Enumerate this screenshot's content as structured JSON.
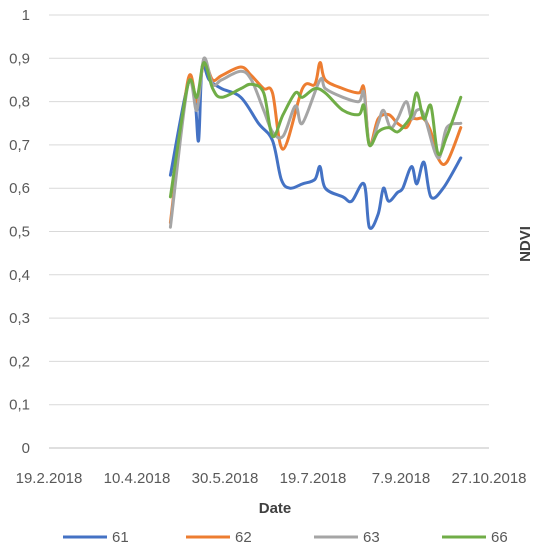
{
  "chart_data": {
    "type": "line",
    "title": "",
    "xlabel": "Date",
    "ylabel": "NDVI",
    "x_ticks": [
      "19.2.2018",
      "10.4.2018",
      "30.5.2018",
      "19.7.2018",
      "7.9.2018",
      "27.10.2018"
    ],
    "y_ticks": [
      "0",
      "0,1",
      "0,2",
      "0,3",
      "0,4",
      "0,5",
      "0,6",
      "0,7",
      "0,8",
      "0,9",
      "1"
    ],
    "xlim": [
      "2018-02-19",
      "2018-10-27"
    ],
    "ylim": [
      0,
      1
    ],
    "grid": "horizontal",
    "legend_position": "bottom",
    "series": [
      {
        "name": "61",
        "color": "#4472C4",
        "points": [
          [
            "2018-04-29",
            0.63
          ],
          [
            "2018-05-09",
            0.84
          ],
          [
            "2018-05-13",
            0.8
          ],
          [
            "2018-05-15",
            0.71
          ],
          [
            "2018-05-17",
            0.88
          ],
          [
            "2018-05-21",
            0.85
          ],
          [
            "2018-05-28",
            0.83
          ],
          [
            "2018-06-08",
            0.81
          ],
          [
            "2018-06-18",
            0.75
          ],
          [
            "2018-06-26",
            0.71
          ],
          [
            "2018-07-01",
            0.62
          ],
          [
            "2018-07-06",
            0.6
          ],
          [
            "2018-07-13",
            0.61
          ],
          [
            "2018-07-20",
            0.62
          ],
          [
            "2018-07-23",
            0.65
          ],
          [
            "2018-07-26",
            0.6
          ],
          [
            "2018-08-05",
            0.58
          ],
          [
            "2018-08-10",
            0.57
          ],
          [
            "2018-08-17",
            0.61
          ],
          [
            "2018-08-20",
            0.51
          ],
          [
            "2018-08-25",
            0.54
          ],
          [
            "2018-08-28",
            0.6
          ],
          [
            "2018-08-31",
            0.57
          ],
          [
            "2018-09-05",
            0.59
          ],
          [
            "2018-09-08",
            0.6
          ],
          [
            "2018-09-13",
            0.65
          ],
          [
            "2018-09-16",
            0.61
          ],
          [
            "2018-09-20",
            0.66
          ],
          [
            "2018-09-24",
            0.58
          ],
          [
            "2018-10-01",
            0.6
          ],
          [
            "2018-10-11",
            0.67
          ]
        ]
      },
      {
        "name": "62",
        "color": "#ED7D31",
        "points": [
          [
            "2018-04-29",
            0.52
          ],
          [
            "2018-05-09",
            0.85
          ],
          [
            "2018-05-14",
            0.8
          ],
          [
            "2018-05-18",
            0.89
          ],
          [
            "2018-05-23",
            0.85
          ],
          [
            "2018-05-28",
            0.86
          ],
          [
            "2018-06-08",
            0.88
          ],
          [
            "2018-06-14",
            0.86
          ],
          [
            "2018-06-21",
            0.83
          ],
          [
            "2018-06-26",
            0.82
          ],
          [
            "2018-07-02",
            0.69
          ],
          [
            "2018-07-13",
            0.83
          ],
          [
            "2018-07-20",
            0.84
          ],
          [
            "2018-07-23",
            0.89
          ],
          [
            "2018-07-26",
            0.85
          ],
          [
            "2018-08-05",
            0.83
          ],
          [
            "2018-08-14",
            0.82
          ],
          [
            "2018-08-17",
            0.83
          ],
          [
            "2018-08-20",
            0.7
          ],
          [
            "2018-08-25",
            0.76
          ],
          [
            "2018-08-31",
            0.77
          ],
          [
            "2018-09-05",
            0.75
          ],
          [
            "2018-09-10",
            0.74
          ],
          [
            "2018-09-13",
            0.76
          ],
          [
            "2018-09-16",
            0.76
          ],
          [
            "2018-09-20",
            0.76
          ],
          [
            "2018-09-24",
            0.73
          ],
          [
            "2018-09-28",
            0.67
          ],
          [
            "2018-10-03",
            0.66
          ],
          [
            "2018-10-11",
            0.74
          ]
        ]
      },
      {
        "name": "63",
        "color": "#A5A5A5",
        "points": [
          [
            "2018-04-29",
            0.51
          ],
          [
            "2018-05-09",
            0.84
          ],
          [
            "2018-05-14",
            0.78
          ],
          [
            "2018-05-18",
            0.9
          ],
          [
            "2018-05-23",
            0.84
          ],
          [
            "2018-05-28",
            0.85
          ],
          [
            "2018-06-08",
            0.87
          ],
          [
            "2018-06-14",
            0.85
          ],
          [
            "2018-06-21",
            0.78
          ],
          [
            "2018-06-26",
            0.73
          ],
          [
            "2018-07-02",
            0.72
          ],
          [
            "2018-07-09",
            0.79
          ],
          [
            "2018-07-13",
            0.75
          ],
          [
            "2018-07-23",
            0.85
          ],
          [
            "2018-07-26",
            0.83
          ],
          [
            "2018-08-05",
            0.81
          ],
          [
            "2018-08-14",
            0.8
          ],
          [
            "2018-08-17",
            0.82
          ],
          [
            "2018-08-20",
            0.7
          ],
          [
            "2018-08-25",
            0.75
          ],
          [
            "2018-08-28",
            0.78
          ],
          [
            "2018-09-01",
            0.74
          ],
          [
            "2018-09-05",
            0.76
          ],
          [
            "2018-09-10",
            0.8
          ],
          [
            "2018-09-13",
            0.76
          ],
          [
            "2018-09-16",
            0.78
          ],
          [
            "2018-09-20",
            0.77
          ],
          [
            "2018-09-28",
            0.67
          ],
          [
            "2018-10-03",
            0.74
          ],
          [
            "2018-10-11",
            0.75
          ]
        ]
      },
      {
        "name": "66",
        "color": "#70AD47",
        "points": [
          [
            "2018-04-29",
            0.58
          ],
          [
            "2018-05-09",
            0.84
          ],
          [
            "2018-05-14",
            0.81
          ],
          [
            "2018-05-18",
            0.89
          ],
          [
            "2018-05-23",
            0.83
          ],
          [
            "2018-05-28",
            0.81
          ],
          [
            "2018-06-08",
            0.83
          ],
          [
            "2018-06-14",
            0.84
          ],
          [
            "2018-06-21",
            0.82
          ],
          [
            "2018-06-26",
            0.72
          ],
          [
            "2018-07-02",
            0.77
          ],
          [
            "2018-07-09",
            0.82
          ],
          [
            "2018-07-13",
            0.81
          ],
          [
            "2018-07-20",
            0.83
          ],
          [
            "2018-07-26",
            0.82
          ],
          [
            "2018-08-05",
            0.78
          ],
          [
            "2018-08-14",
            0.77
          ],
          [
            "2018-08-17",
            0.79
          ],
          [
            "2018-08-20",
            0.7
          ],
          [
            "2018-08-25",
            0.73
          ],
          [
            "2018-08-31",
            0.74
          ],
          [
            "2018-09-05",
            0.73
          ],
          [
            "2018-09-10",
            0.75
          ],
          [
            "2018-09-13",
            0.77
          ],
          [
            "2018-09-16",
            0.82
          ],
          [
            "2018-09-20",
            0.76
          ],
          [
            "2018-09-24",
            0.79
          ],
          [
            "2018-09-28",
            0.68
          ],
          [
            "2018-10-03",
            0.72
          ],
          [
            "2018-10-11",
            0.81
          ]
        ]
      }
    ]
  }
}
